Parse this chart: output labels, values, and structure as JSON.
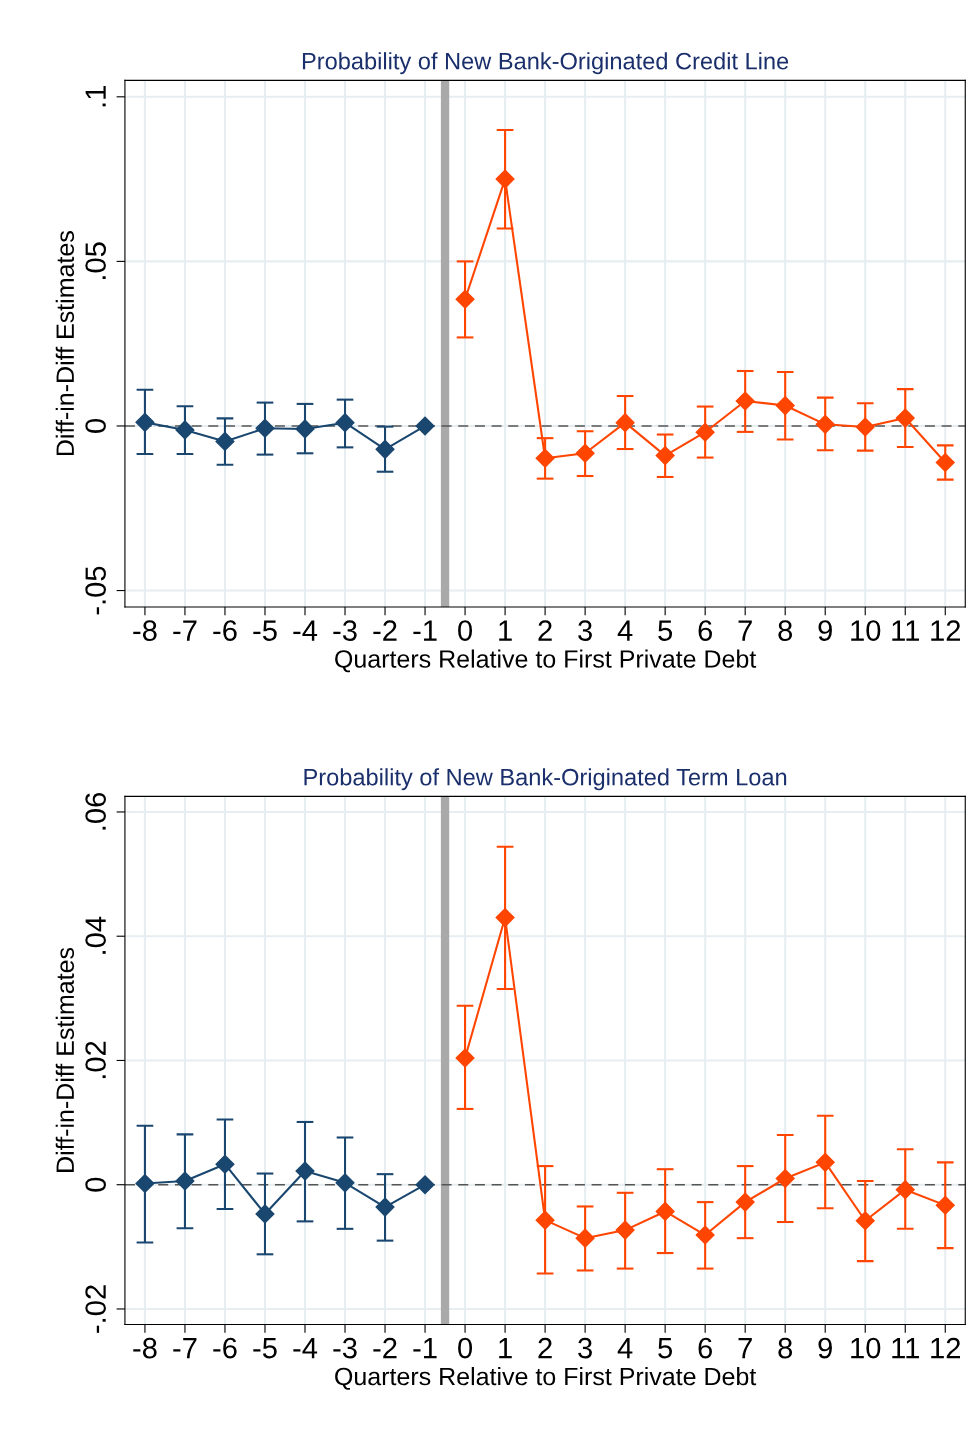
{
  "chart_data": [
    {
      "type": "line",
      "title": "Probability of New Bank-Originated Credit Line",
      "xlabel": "Quarters Relative to First Private Debt",
      "ylabel": "Diff-in-Diff Estimates",
      "marker": "diamond",
      "grid": true,
      "xlim": [
        -8.5,
        12.5
      ],
      "xticks": [
        -8,
        -7,
        -6,
        -5,
        -4,
        -3,
        -2,
        -1,
        0,
        1,
        2,
        3,
        4,
        5,
        6,
        7,
        8,
        9,
        10,
        11,
        12
      ],
      "ylim": [
        -0.055,
        0.105
      ],
      "yticks": [
        {
          "value": -0.05,
          "label": "-.05"
        },
        {
          "value": 0,
          "label": "0"
        },
        {
          "value": 0.05,
          "label": ".05"
        },
        {
          "value": 0.1,
          "label": ".1"
        }
      ],
      "ref_lines": [
        {
          "axis": "x",
          "value": -0.5,
          "color": "#a9a9a9",
          "line_style": "solid"
        },
        {
          "axis": "y",
          "value": 0,
          "color": "#555555",
          "line_style": "dashed"
        }
      ],
      "series": [
        {
          "color": "#1a476f",
          "x": [
            -8,
            -7,
            -6,
            -5,
            -4,
            -3,
            -2,
            -1
          ],
          "values": [
            0.0011,
            -0.0012,
            -0.0047,
            -0.0007,
            -0.0009,
            0.001,
            -0.0071,
            0
          ],
          "errors": [
            [
              -0.0085,
              0.011
            ],
            [
              -0.0085,
              0.006
            ],
            [
              -0.0118,
              0.0023
            ],
            [
              -0.0087,
              0.0071
            ],
            [
              -0.0083,
              0.0067
            ],
            [
              -0.0065,
              0.008
            ],
            [
              -0.0139,
              -0.0002
            ],
            null
          ]
        },
        {
          "color": "#ff4500",
          "x": [
            0,
            1,
            2,
            3,
            4,
            5,
            6,
            7,
            8,
            9,
            10,
            11,
            12
          ],
          "values": [
            0.0385,
            0.075,
            -0.0098,
            -0.0083,
            0.001,
            -0.009,
            -0.0019,
            0.0076,
            0.0062,
            0.0005,
            -0.0003,
            0.0024,
            -0.0111
          ],
          "errors": [
            [
              0.0269,
              0.05
            ],
            [
              0.06,
              0.0899
            ],
            [
              -0.016,
              -0.0037
            ],
            [
              -0.0152,
              -0.0016
            ],
            [
              -0.007,
              0.0091
            ],
            [
              -0.0155,
              -0.0026
            ],
            [
              -0.0096,
              0.0059
            ],
            [
              -0.0018,
              0.0167
            ],
            [
              -0.0041,
              0.0164
            ],
            [
              -0.0074,
              0.0086
            ],
            [
              -0.0075,
              0.0069
            ],
            [
              -0.0064,
              0.0112
            ],
            [
              -0.0163,
              -0.0059
            ]
          ]
        }
      ]
    },
    {
      "type": "line",
      "title": "Probability of New Bank-Originated Term Loan",
      "xlabel": "Quarters Relative to First Private Debt",
      "ylabel": "Diff-in-Diff Estimates",
      "marker": "diamond",
      "grid": true,
      "xlim": [
        -8.5,
        12.5
      ],
      "xticks": [
        -8,
        -7,
        -6,
        -5,
        -4,
        -3,
        -2,
        -1,
        0,
        1,
        2,
        3,
        4,
        5,
        6,
        7,
        8,
        9,
        10,
        11,
        12
      ],
      "ylim": [
        -0.0225,
        0.0625
      ],
      "yticks": [
        {
          "value": -0.02,
          "label": "-.02"
        },
        {
          "value": 0,
          "label": "0"
        },
        {
          "value": 0.02,
          "label": ".02"
        },
        {
          "value": 0.04,
          "label": ".04"
        },
        {
          "value": 0.06,
          "label": ".06"
        }
      ],
      "ref_lines": [
        {
          "axis": "x",
          "value": -0.5,
          "color": "#a9a9a9",
          "line_style": "solid"
        },
        {
          "axis": "y",
          "value": 0,
          "color": "#555555",
          "line_style": "dashed"
        }
      ],
      "series": [
        {
          "color": "#1a476f",
          "x": [
            -8,
            -7,
            -6,
            -5,
            -4,
            -3,
            -2,
            -1
          ],
          "values": [
            0.0002,
            0.0006,
            0.0033,
            -0.0047,
            0.0022,
            0.0003,
            -0.0036,
            0
          ],
          "errors": [
            [
              -0.0093,
              0.0095
            ],
            [
              -0.007,
              0.0081
            ],
            [
              -0.0039,
              0.0105
            ],
            [
              -0.0112,
              0.0018
            ],
            [
              -0.0059,
              0.0101
            ],
            [
              -0.0071,
              0.0076
            ],
            [
              -0.009,
              0.0017
            ],
            null
          ]
        },
        {
          "color": "#ff4500",
          "x": [
            0,
            1,
            2,
            3,
            4,
            5,
            6,
            7,
            8,
            9,
            10,
            11,
            12
          ],
          "values": [
            0.0204,
            0.043,
            -0.0057,
            -0.0086,
            -0.0073,
            -0.0043,
            -0.0081,
            -0.0028,
            0.001,
            0.0036,
            -0.0058,
            -0.0008,
            -0.0033
          ],
          "errors": [
            [
              0.0122,
              0.0288
            ],
            [
              0.0315,
              0.0544
            ],
            [
              -0.0143,
              0.003
            ],
            [
              -0.0138,
              -0.0035
            ],
            [
              -0.0135,
              -0.0013
            ],
            [
              -0.011,
              0.0025
            ],
            [
              -0.0135,
              -0.0028
            ],
            [
              -0.0086,
              0.003
            ],
            [
              -0.006,
              0.008
            ],
            [
              -0.0038,
              0.0111
            ],
            [
              -0.0123,
              0.0006
            ],
            [
              -0.0071,
              0.0057
            ],
            [
              -0.0102,
              0.0036
            ]
          ]
        }
      ]
    }
  ]
}
